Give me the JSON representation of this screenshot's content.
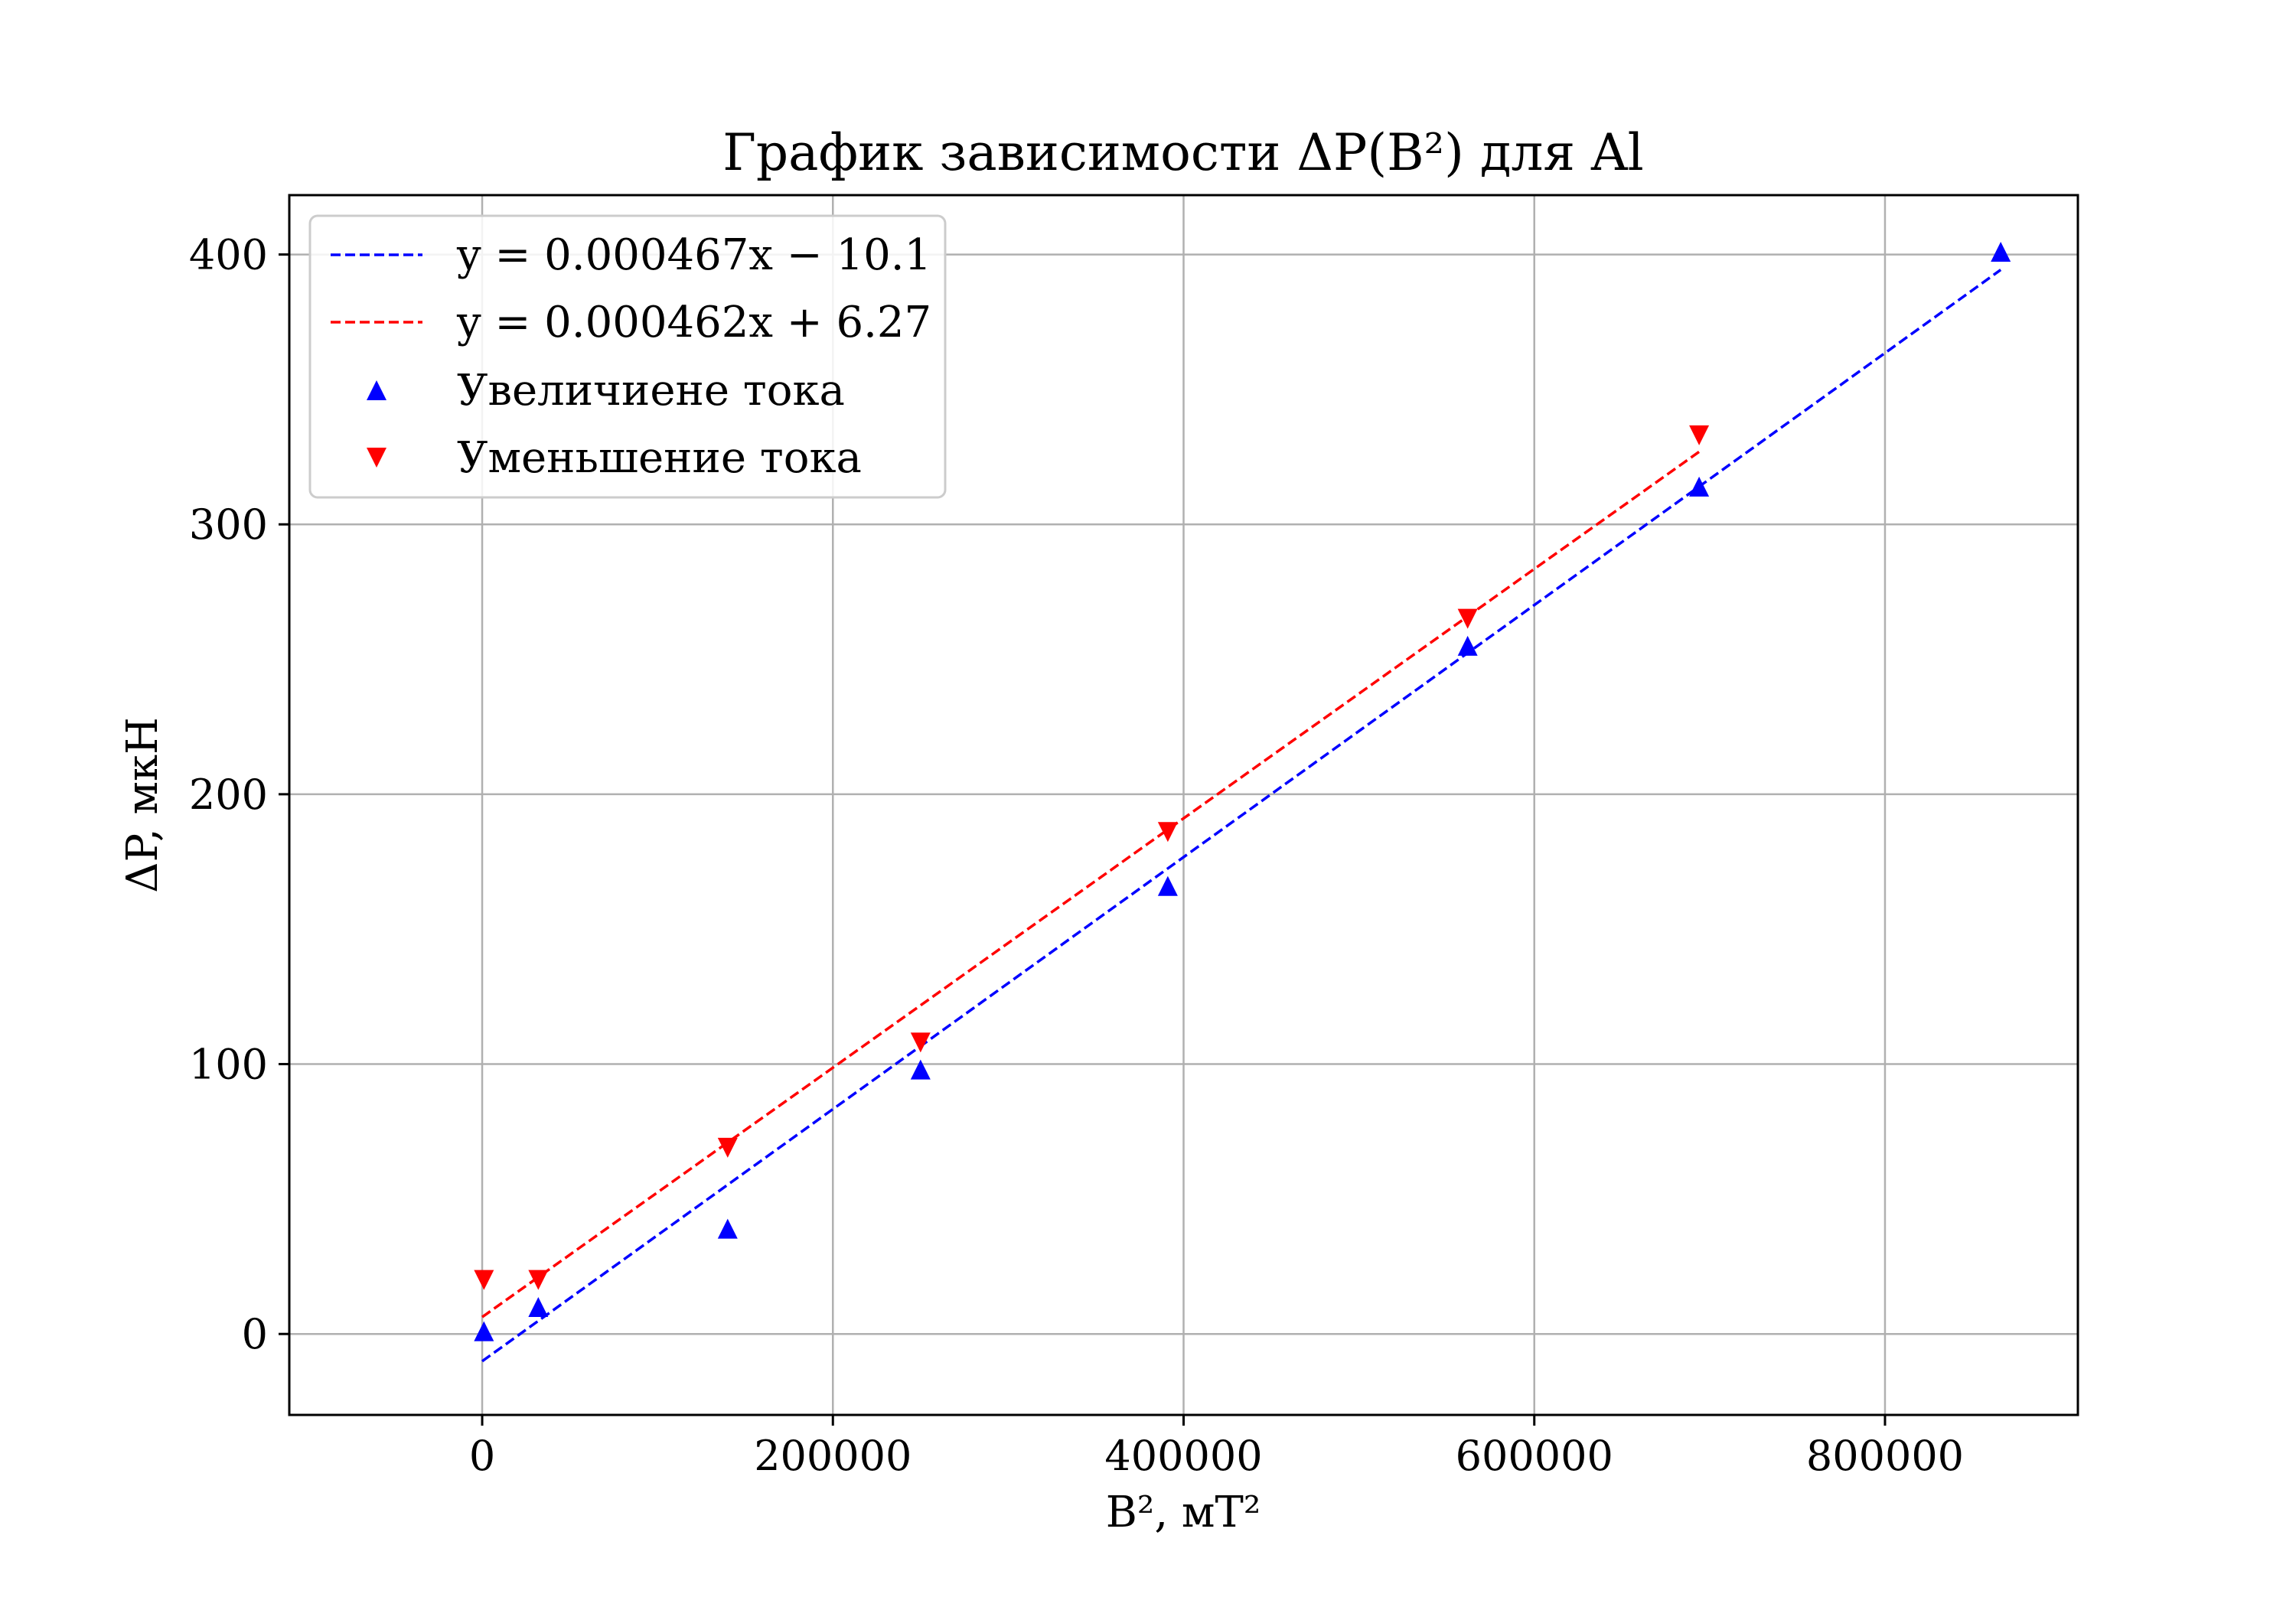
{
  "chart_data": {
    "type": "scatter",
    "title": "График зависимости ΔP(B²) для Al",
    "xlabel": "B², мТ²",
    "ylabel": "ΔP, мкН",
    "xlim": [
      -110000,
      910000
    ],
    "ylim": [
      -30,
      422
    ],
    "x_ticks": [
      0,
      200000,
      400000,
      600000,
      800000
    ],
    "x_tick_labels": [
      "0",
      "200000",
      "400000",
      "600000",
      "800000"
    ],
    "y_ticks": [
      0,
      100,
      200,
      300,
      400
    ],
    "y_tick_labels": [
      "0",
      "100",
      "200",
      "300",
      "400"
    ],
    "grid": true,
    "legend_position": "top-left",
    "fits": [
      {
        "label": "y = 0.000467x − 10.1",
        "slope": 0.000467,
        "intercept": -10.1,
        "x_range": [
          0,
          866000
        ],
        "color": "#0000ff",
        "style": "dashed"
      },
      {
        "label": "y = 0.000462x + 6.27",
        "slope": 0.000462,
        "intercept": 6.27,
        "x_range": [
          0,
          694000
        ],
        "color": "#ff0000",
        "style": "dashed"
      }
    ],
    "series": [
      {
        "name": "Увеличиене тока",
        "marker": "triangle-up",
        "color": "#0000ff",
        "x": [
          1000,
          32000,
          140000,
          250000,
          391000,
          562000,
          694000,
          866000
        ],
        "y": [
          1,
          10,
          39,
          98,
          166,
          255,
          314,
          401
        ]
      },
      {
        "name": "Уменьшение тока",
        "marker": "triangle-down",
        "color": "#ff0000",
        "x": [
          1000,
          32000,
          140000,
          250000,
          391000,
          562000,
          694000
        ],
        "y": [
          20,
          20,
          69,
          108,
          186,
          265,
          333
        ]
      }
    ]
  }
}
